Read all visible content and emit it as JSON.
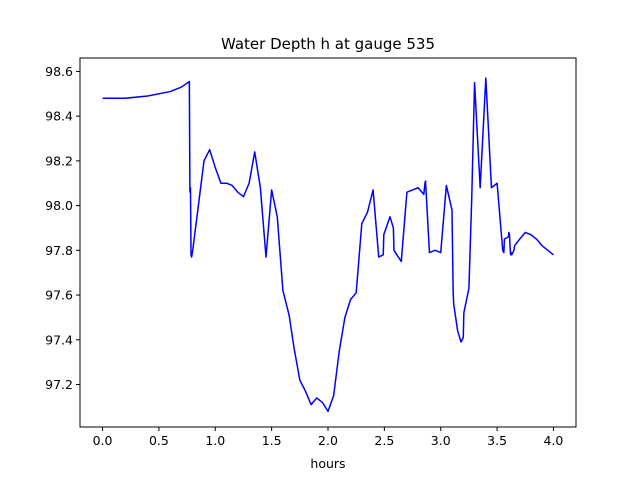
{
  "chart_data": {
    "type": "line",
    "title": "Water Depth h at gauge 535",
    "xlabel": "hours",
    "ylabel": "",
    "xlim": [
      -0.2,
      4.2
    ],
    "ylim": [
      97.01,
      98.66
    ],
    "xticks": [
      0.0,
      0.5,
      1.0,
      1.5,
      2.0,
      2.5,
      3.0,
      3.5,
      4.0
    ],
    "xtick_labels": [
      "0.0",
      "0.5",
      "1.0",
      "1.5",
      "2.0",
      "2.5",
      "3.0",
      "3.5",
      "4.0"
    ],
    "yticks": [
      97.2,
      97.4,
      97.6,
      97.8,
      98.0,
      98.2,
      98.4,
      98.6
    ],
    "ytick_labels": [
      "97.2",
      "97.4",
      "97.6",
      "97.8",
      "98.0",
      "98.2",
      "98.4",
      "98.6"
    ],
    "grid": false,
    "series": [
      {
        "color": "#0000ff",
        "x": [
          0.0,
          0.2,
          0.4,
          0.6,
          0.7,
          0.77,
          0.775,
          0.78,
          0.785,
          0.79,
          0.8,
          0.85,
          0.9,
          0.95,
          1.0,
          1.05,
          1.1,
          1.15,
          1.2,
          1.25,
          1.3,
          1.35,
          1.4,
          1.45,
          1.5,
          1.55,
          1.6,
          1.605,
          1.65,
          1.655,
          1.7,
          1.75,
          1.8,
          1.85,
          1.9,
          1.95,
          2.0,
          2.05,
          2.1,
          2.15,
          2.2,
          2.25,
          2.3,
          2.35,
          2.4,
          2.45,
          2.49,
          2.495,
          2.55,
          2.58,
          2.585,
          2.65,
          2.7,
          2.75,
          2.8,
          2.85,
          2.86,
          2.865,
          2.9,
          2.95,
          3.0,
          3.05,
          3.1,
          3.11,
          3.115,
          3.15,
          3.18,
          3.2,
          3.205,
          3.25,
          3.27,
          3.275,
          3.3,
          3.35,
          3.4,
          3.45,
          3.5,
          3.55,
          3.56,
          3.565,
          3.6,
          3.605,
          3.61,
          3.615,
          3.62,
          3.625,
          3.63,
          3.65,
          3.655,
          3.7,
          3.75,
          3.8,
          3.85,
          3.9,
          3.95,
          4.0
        ],
        "y": [
          98.48,
          98.48,
          98.49,
          98.51,
          98.53,
          98.555,
          98.06,
          98.08,
          97.78,
          97.77,
          97.8,
          98.0,
          98.2,
          98.25,
          98.17,
          98.1,
          98.1,
          98.09,
          98.06,
          98.04,
          98.1,
          98.24,
          98.08,
          97.77,
          98.07,
          97.95,
          97.62,
          97.61,
          97.52,
          97.51,
          97.36,
          97.22,
          97.17,
          97.11,
          97.14,
          97.12,
          97.08,
          97.15,
          97.35,
          97.5,
          97.58,
          97.61,
          97.92,
          97.97,
          98.07,
          97.77,
          97.78,
          97.87,
          97.95,
          97.9,
          97.8,
          97.75,
          98.06,
          98.07,
          98.08,
          98.05,
          98.1,
          98.11,
          97.79,
          97.8,
          97.79,
          98.09,
          97.98,
          97.62,
          97.56,
          97.44,
          97.39,
          97.41,
          97.52,
          97.63,
          97.95,
          98.03,
          98.55,
          98.08,
          98.57,
          98.08,
          98.1,
          97.8,
          97.79,
          97.85,
          97.86,
          97.88,
          97.87,
          97.82,
          97.78,
          97.79,
          97.78,
          97.8,
          97.82,
          97.85,
          97.88,
          97.87,
          97.85,
          97.82,
          97.8,
          97.78
        ]
      }
    ]
  }
}
